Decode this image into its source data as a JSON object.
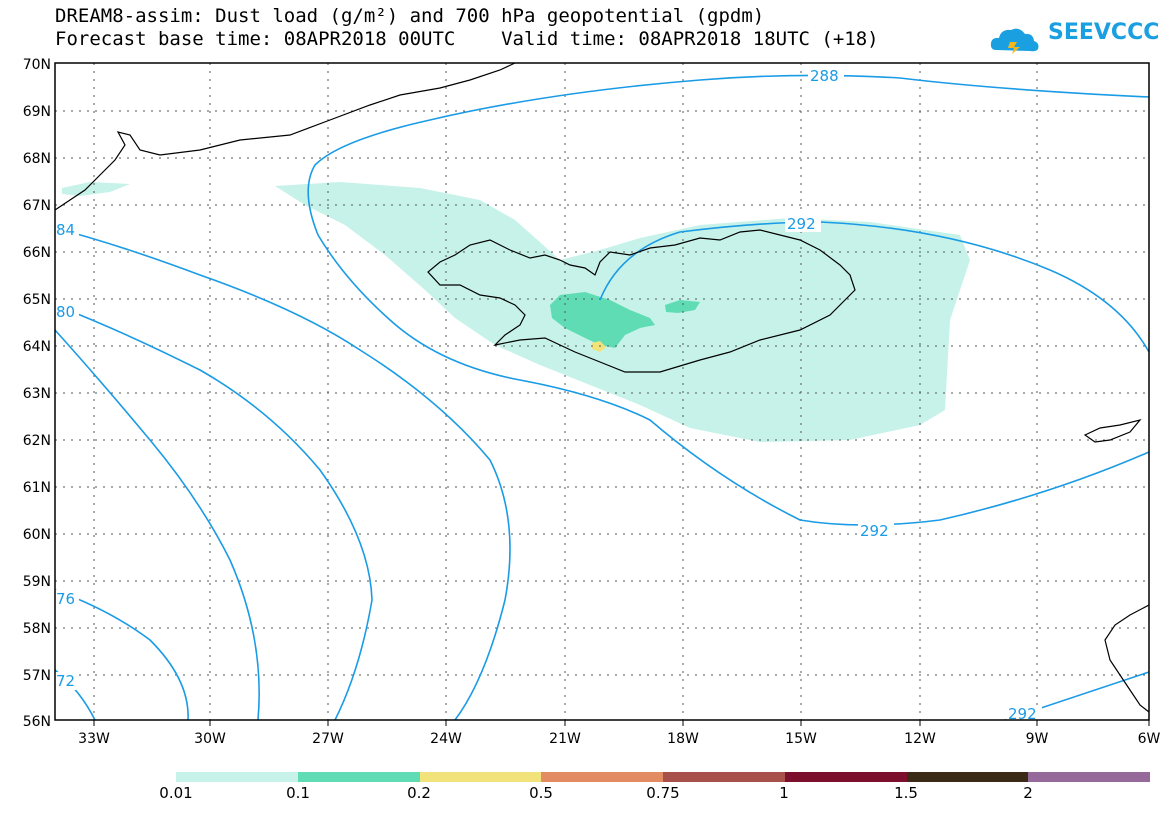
{
  "title": {
    "line1": "DREAM8-assim: Dust load (g/m²) and 700 hPa geopotential (gpdm)",
    "line2": "Forecast base time: 08APR2018 00UTC    Valid time: 08APR2018 18UTC (+18)"
  },
  "logo": {
    "text": "SEEVCCC",
    "icon": "cloud-icon",
    "color": "#1aa0e0"
  },
  "map": {
    "lon_labels": [
      "33W",
      "30W",
      "27W",
      "24W",
      "21W",
      "18W",
      "15W",
      "12W",
      "9W",
      "6W"
    ],
    "lat_labels": [
      "70N",
      "69N",
      "68N",
      "67N",
      "66N",
      "65N",
      "64N",
      "63N",
      "62N",
      "61N",
      "60N",
      "59N",
      "58N",
      "57N",
      "56N"
    ],
    "contour_labels": [
      "288",
      "292",
      "292",
      "292",
      "84",
      "80",
      "76",
      "72"
    ],
    "contour_color": "#1a9be6",
    "dust_colors": {
      "low": "#c6f2e9",
      "mid": "#5fdcb4",
      "high": "#f2e27a"
    }
  },
  "legend": {
    "labels": [
      "0.01",
      "0.1",
      "0.2",
      "0.5",
      "0.75",
      "1",
      "1.5",
      "2"
    ],
    "colors": [
      "#c6f2e9",
      "#5fdcb4",
      "#f2e27a",
      "#e38b62",
      "#a8504a",
      "#7c0f2c",
      "#3a2a16",
      "#956a9a"
    ]
  }
}
